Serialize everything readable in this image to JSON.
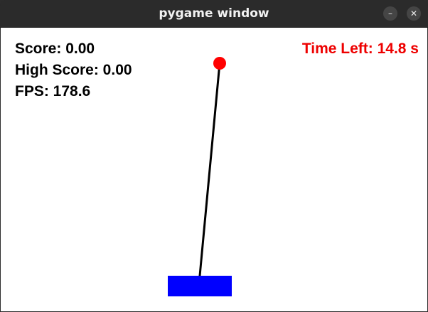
{
  "window": {
    "title": "pygame window",
    "minimize_glyph": "–",
    "close_glyph": "✕"
  },
  "hud": {
    "score_label": "Score: 0.00",
    "high_score_label": "High Score: 0.00",
    "fps_label": "FPS: 178.6",
    "time_left_label": "Time Left: 14.8 s"
  },
  "colors": {
    "background": "#ffffff",
    "cart": "#0000ff",
    "bob": "#ff0000",
    "rod": "#000000",
    "time_left_text": "#ee0000"
  },
  "icons": [
    "minimize-icon",
    "close-icon"
  ]
}
